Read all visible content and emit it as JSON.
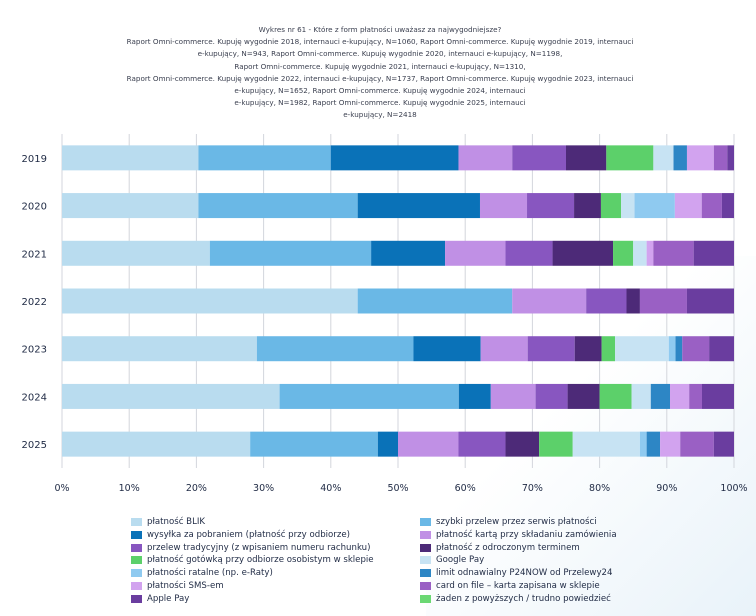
{
  "title_lines": [
    "Wykres nr 61 - Które z form płatności uważasz za najwygodniejsze?",
    "Raport Omni-commerce. Kupuję wygodnie 2018, internauci e-kupujący, N=1060, Raport Omni-commerce. Kupuję wygodnie 2019, internauci",
    "e-kupujący, N=943, Raport Omni-commerce. Kupuję wygodnie 2020, internauci e-kupujący, N=1198,",
    "Raport Omni-commerce. Kupuję wygodnie 2021, internauci e-kupujący, N=1310,",
    "Raport Omni-commerce. Kupuję wygodnie 2022, internauci e-kupujący, N=1737, Raport Omni-commerce. Kupuję wygodnie 2023, internauci",
    "e-kupujący, N=1652, Raport Omni-commerce. Kupuję wygodnie 2024, internauci",
    "e-kupujący, N=1982, Raport Omni-commerce. Kupuję wygodnie 2025, internauci",
    "e-kupujący, N=2418"
  ],
  "chart_data": {
    "type": "bar",
    "orientation": "horizontal",
    "stacked": "percent",
    "categories": [
      "2019",
      "2020",
      "2021",
      "2022",
      "2023",
      "2024",
      "2025"
    ],
    "x_ticks": [
      "0%",
      "10%",
      "20%",
      "30%",
      "40%",
      "50%",
      "60%",
      "70%",
      "80%",
      "90%",
      "100%"
    ],
    "xlim": [
      0,
      100
    ],
    "grid": "vertical",
    "legend_position": "bottom",
    "series": [
      {
        "name": "płatność BLIK",
        "color": "#b9dcef",
        "values": [
          20.3,
          20.3,
          22,
          44,
          29,
          34,
          28
        ]
      },
      {
        "name": "szybki przelew przez serwis płatności",
        "color": "#6ab8e6",
        "values": [
          19.7,
          23.7,
          24,
          23,
          23.3,
          28,
          19
        ]
      },
      {
        "name": "wysyłka za pobraniem (płatność przy odbiorze)",
        "color": "#0a72b8",
        "values": [
          19,
          18.2,
          11,
          0,
          10,
          5,
          3
        ]
      },
      {
        "name": "płatność kartą przy składaniu zamówienia",
        "color": "#c090e5",
        "values": [
          8,
          7,
          9,
          11,
          7,
          7,
          9
        ]
      },
      {
        "name": "przelew tradycyjny (z wpisaniem numeru rachunku)",
        "color": "#8856c0",
        "values": [
          8,
          7,
          7,
          6,
          7,
          5,
          7
        ]
      },
      {
        "name": "płatność z odroczonym terminem",
        "color": "#4d2a78",
        "values": [
          6,
          4,
          9,
          2,
          4,
          5,
          5
        ]
      },
      {
        "name": "płatność gotówką przy odbiorze osobistym w sklepie",
        "color": "#5cd06a",
        "values": [
          7,
          3,
          3,
          0,
          2,
          5,
          5
        ]
      },
      {
        "name": "Google Pay",
        "color": "#c7e3f3",
        "values": [
          3,
          2,
          2,
          0,
          8,
          3,
          10
        ]
      },
      {
        "name": "płatności ratalne (np. e-Raty)",
        "color": "#8fcaf0",
        "values": [
          0,
          6,
          0,
          0,
          1,
          0,
          1
        ]
      },
      {
        "name": "limit odnawialny P24NOW od Przelewy24",
        "color": "#2d86c5",
        "values": [
          2,
          0,
          0,
          0,
          1,
          3,
          2
        ]
      },
      {
        "name": "płatności SMS-em",
        "color": "#d2a3ef",
        "values": [
          4,
          4,
          1,
          0,
          0,
          3,
          3
        ]
      },
      {
        "name": "card on file – karta zapisana w sklepie",
        "color": "#9a60c4",
        "values": [
          2,
          3,
          6,
          7,
          4,
          2,
          5
        ]
      },
      {
        "name": "Apple Pay",
        "color": "#6a3d9f",
        "values": [
          1,
          1.8,
          6,
          7,
          3.7,
          5,
          3
        ]
      },
      {
        "name": "żaden z powyższych / trudno powiedzieć",
        "color": "#6bd873",
        "values": [
          0,
          0,
          0,
          0,
          0,
          0,
          0
        ]
      }
    ]
  }
}
